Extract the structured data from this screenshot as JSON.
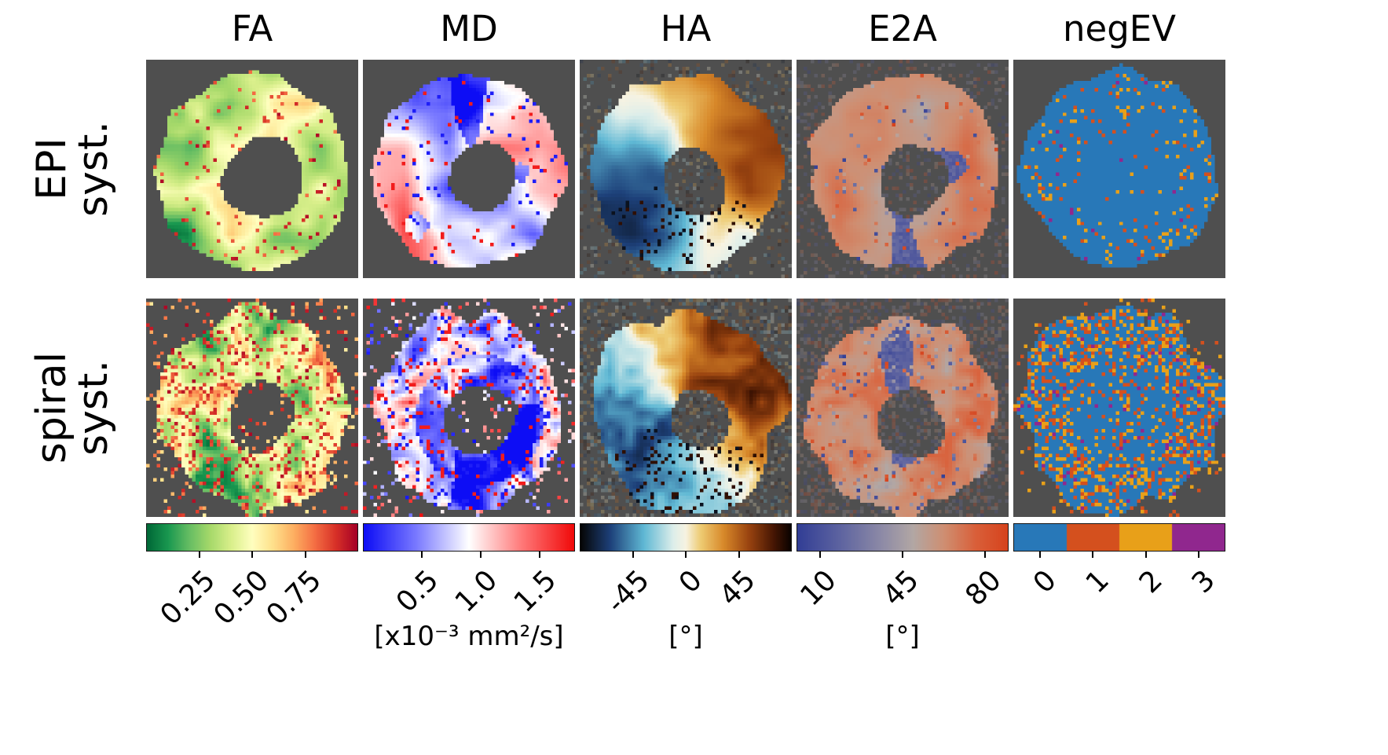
{
  "figure": {
    "background": "#ffffff",
    "panel_background": "#4f4f4f",
    "rows": [
      {
        "id": "epi",
        "label": "EPI syst.",
        "lines": [
          "EPI",
          "syst."
        ]
      },
      {
        "id": "spiral",
        "label": "spiral syst.",
        "lines": [
          "spiral",
          "syst."
        ]
      }
    ],
    "columns": [
      {
        "id": "fa",
        "label": "FA",
        "unit": "",
        "ticks": [
          {
            "label": "0.25",
            "pos": 0.25
          },
          {
            "label": "0.50",
            "pos": 0.5
          },
          {
            "label": "0.75",
            "pos": 0.75
          }
        ],
        "stops": [
          {
            "p": 0.0,
            "c": "#006837"
          },
          {
            "p": 0.1,
            "c": "#1a9850"
          },
          {
            "p": 0.2,
            "c": "#66bd63"
          },
          {
            "p": 0.3,
            "c": "#a6d96a"
          },
          {
            "p": 0.4,
            "c": "#d9ef8b"
          },
          {
            "p": 0.5,
            "c": "#ffffbf"
          },
          {
            "p": 0.6,
            "c": "#fee08b"
          },
          {
            "p": 0.7,
            "c": "#fdae61"
          },
          {
            "p": 0.8,
            "c": "#f46d43"
          },
          {
            "p": 0.9,
            "c": "#d73027"
          },
          {
            "p": 1.0,
            "c": "#a50026"
          }
        ]
      },
      {
        "id": "md",
        "label": "MD",
        "unit": "[x10⁻³ mm²/s]",
        "ticks": [
          {
            "label": "0.5",
            "pos": 0.278
          },
          {
            "label": "1.0",
            "pos": 0.556
          },
          {
            "label": "1.5",
            "pos": 0.833
          }
        ],
        "stops": [
          {
            "p": 0.0,
            "c": "#0d0df5"
          },
          {
            "p": 0.25,
            "c": "#7a7aff"
          },
          {
            "p": 0.5,
            "c": "#ffffff"
          },
          {
            "p": 0.75,
            "c": "#ff7a7a"
          },
          {
            "p": 1.0,
            "c": "#f00a0a"
          }
        ]
      },
      {
        "id": "ha",
        "label": "HA",
        "unit": "[°]",
        "ticks": [
          {
            "label": "-45",
            "pos": 0.25
          },
          {
            "label": "0",
            "pos": 0.5
          },
          {
            "label": "45",
            "pos": 0.75
          }
        ],
        "stops": [
          {
            "p": 0.0,
            "c": "#060606"
          },
          {
            "p": 0.14,
            "c": "#1d4079"
          },
          {
            "p": 0.3,
            "c": "#5fb8d4"
          },
          {
            "p": 0.44,
            "c": "#ddeeea"
          },
          {
            "p": 0.5,
            "c": "#f7f3e2"
          },
          {
            "p": 0.57,
            "c": "#eecc74"
          },
          {
            "p": 0.68,
            "c": "#d8892a"
          },
          {
            "p": 0.8,
            "c": "#9a4410"
          },
          {
            "p": 0.92,
            "c": "#451603"
          },
          {
            "p": 1.0,
            "c": "#0b0300"
          }
        ]
      },
      {
        "id": "e2a",
        "label": "E2A",
        "unit": "[°]",
        "ticks": [
          {
            "label": "10",
            "pos": 0.111
          },
          {
            "label": "45",
            "pos": 0.5
          },
          {
            "label": "80",
            "pos": 0.889
          }
        ],
        "stops": [
          {
            "p": 0.0,
            "c": "#323e95"
          },
          {
            "p": 0.2,
            "c": "#5d63a0"
          },
          {
            "p": 0.4,
            "c": "#8d8aa6"
          },
          {
            "p": 0.55,
            "c": "#b2a7a4"
          },
          {
            "p": 0.7,
            "c": "#cf8e71"
          },
          {
            "p": 0.85,
            "c": "#d95f39"
          },
          {
            "p": 1.0,
            "c": "#d6431d"
          }
        ]
      },
      {
        "id": "negev",
        "label": "negEV",
        "unit": "",
        "ticks": [
          {
            "label": "0",
            "pos": 0.125
          },
          {
            "label": "1",
            "pos": 0.375
          },
          {
            "label": "2",
            "pos": 0.625
          },
          {
            "label": "3",
            "pos": 0.875
          }
        ],
        "colors": [
          "#2878b8",
          "#d4501e",
          "#e8a019",
          "#90278e"
        ]
      }
    ]
  }
}
